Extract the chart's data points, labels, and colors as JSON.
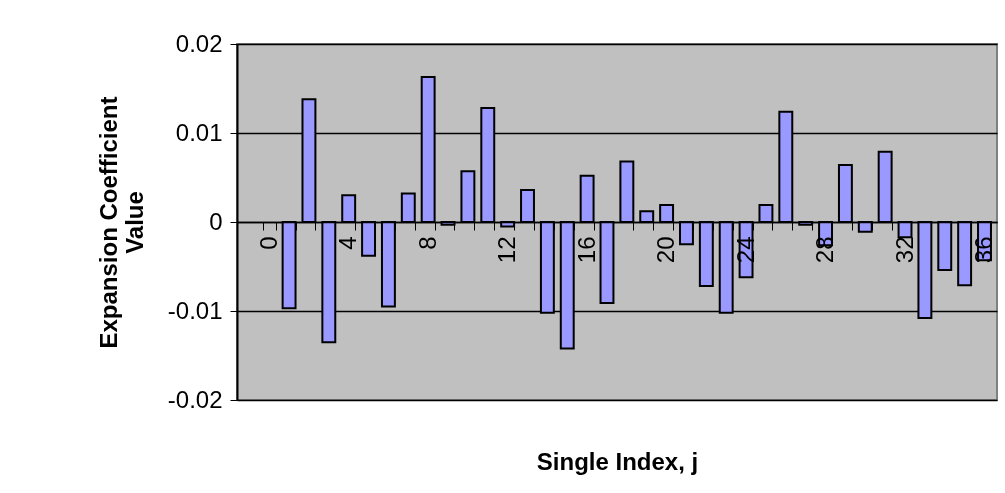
{
  "chart_data": {
    "type": "bar",
    "xlabel": "Single Index, j",
    "ylabel": "Expansion Coefficient Value",
    "categories": [
      "0",
      null,
      null,
      null,
      "4",
      null,
      null,
      null,
      "8",
      null,
      null,
      null,
      "12",
      null,
      null,
      null,
      "16",
      null,
      null,
      null,
      "20",
      null,
      null,
      null,
      "24",
      null,
      null,
      null,
      "28",
      null,
      null,
      null,
      "32",
      null,
      null,
      null,
      "36"
    ],
    "values": [
      null,
      -0.0097,
      0.0138,
      -0.0135,
      0.003,
      -0.0038,
      -0.0095,
      0.0032,
      0.0163,
      -0.0003,
      0.0057,
      0.0128,
      -0.0005,
      0.0036,
      -0.0102,
      -0.0142,
      0.0052,
      -0.0091,
      0.0068,
      0.0012,
      0.0019,
      -0.0025,
      -0.0072,
      -0.0102,
      -0.0062,
      0.0019,
      0.0124,
      -0.0003,
      -0.0026,
      0.0064,
      -0.0011,
      0.0079,
      -0.0017,
      -0.0108,
      -0.0054,
      -0.0071,
      -0.0043
    ],
    "color": "#9999ff",
    "ylim": [
      -0.02,
      0.02
    ],
    "yticks": [
      -0.02,
      -0.01,
      0,
      0.01,
      0.02
    ],
    "grid": "y"
  }
}
